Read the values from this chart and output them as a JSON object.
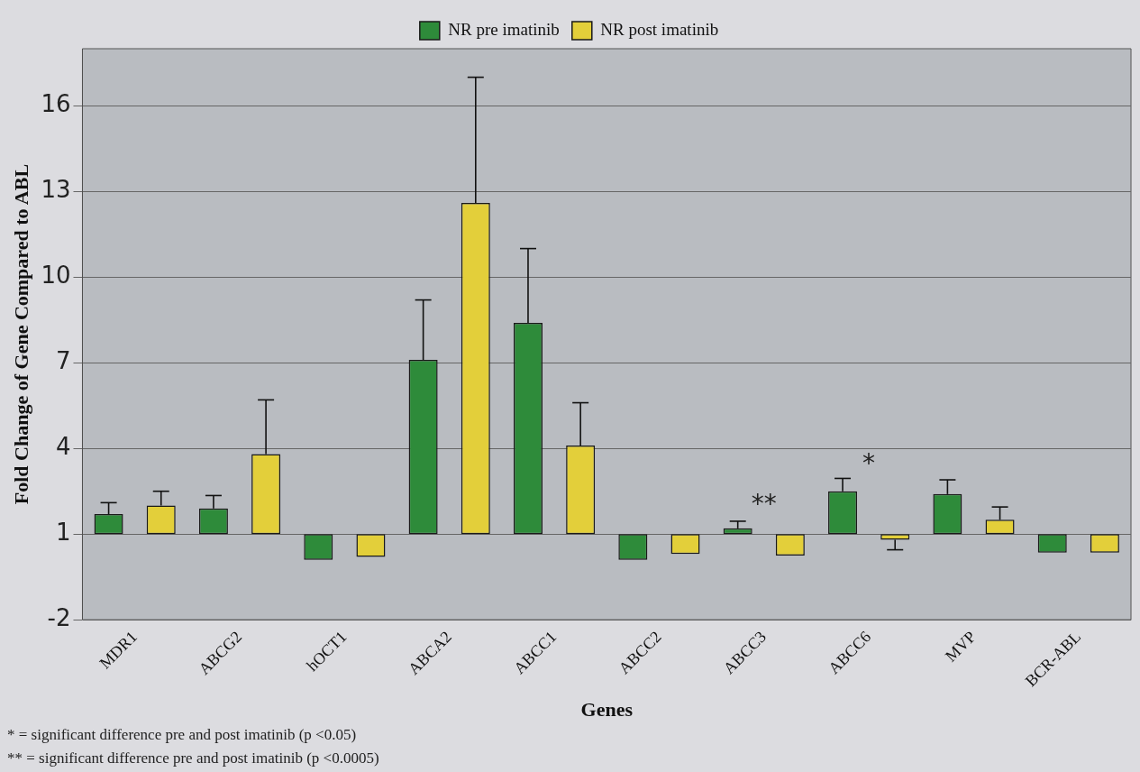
{
  "chart_data": {
    "type": "bar",
    "xlabel": "Genes",
    "ylabel": "Fold Change of Gene Compared to ABL",
    "categories": [
      "MDR1",
      "ABCG2",
      "hOCT1",
      "ABCA2",
      "ABCC1",
      "ABCC2",
      "ABCC3",
      "ABCC6",
      "MVP",
      "BCR-ABL"
    ],
    "series": [
      {
        "name": "NR pre imatinib",
        "color": "#2e8b3a",
        "base": [
          1,
          1,
          1,
          1,
          1,
          1,
          1,
          1,
          1,
          1
        ],
        "values": [
          0.7,
          0.9,
          -0.9,
          6.1,
          7.4,
          -0.9,
          0.2,
          1.5,
          1.4,
          -0.65
        ],
        "errors": [
          [
            1.7,
            2.1
          ],
          [
            1.9,
            2.35
          ],
          null,
          [
            7.1,
            9.2
          ],
          [
            8.4,
            11.0
          ],
          null,
          [
            1.2,
            1.45
          ],
          [
            2.5,
            2.95
          ],
          [
            2.4,
            2.9
          ],
          null
        ]
      },
      {
        "name": "NR post imatinib",
        "color": "#e3cf3a",
        "base": [
          1,
          1,
          1,
          1,
          1,
          1,
          1,
          1,
          1,
          1
        ],
        "values": [
          1.0,
          2.8,
          -0.8,
          11.6,
          3.1,
          -0.7,
          -0.75,
          -0.2,
          0.5,
          -0.65
        ],
        "errors": [
          [
            2.0,
            2.5
          ],
          [
            3.8,
            5.7
          ],
          null,
          [
            12.6,
            17.0
          ],
          [
            4.1,
            5.6
          ],
          null,
          null,
          [
            0.45,
            0.8
          ],
          [
            1.5,
            1.95
          ],
          null
        ]
      }
    ],
    "ylim": [
      -2,
      18
    ],
    "yticks": [
      -2,
      1,
      4,
      7,
      10,
      13,
      16
    ],
    "grid": "y",
    "legend": "top",
    "annotations": [
      "**",
      "*",
      "* = significant difference pre and post imatinib (p <0.05)",
      "** = significant difference pre and post imatinib (p <0.0005)"
    ]
  }
}
